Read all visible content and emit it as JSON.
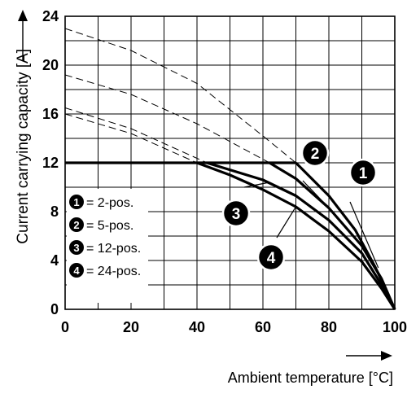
{
  "chart_data": {
    "type": "line",
    "xlabel": "Ambient temperature [°C]",
    "ylabel": "Current carrying capacity [A]",
    "xlim": [
      0,
      100
    ],
    "ylim": [
      0,
      24
    ],
    "x_ticks": [
      0,
      20,
      40,
      60,
      80,
      100
    ],
    "y_ticks": [
      0,
      4,
      8,
      12,
      16,
      20,
      24
    ],
    "grid": true,
    "legend_position": "left-middle",
    "legend": [
      {
        "marker": "1",
        "label": "= 2-pos."
      },
      {
        "marker": "2",
        "label": "= 5-pos."
      },
      {
        "marker": "3",
        "label": "= 12-pos."
      },
      {
        "marker": "4",
        "label": "= 24-pos."
      }
    ],
    "series": [
      {
        "marker": "1",
        "cap_value": 12,
        "solid": [
          [
            70,
            12
          ],
          [
            80,
            9.3
          ],
          [
            88,
            6.5
          ],
          [
            94,
            3.5
          ],
          [
            98,
            1.2
          ],
          [
            100,
            0
          ]
        ],
        "dashed": [
          [
            0,
            23
          ],
          [
            20,
            21.2
          ],
          [
            40,
            18.5
          ],
          [
            60,
            14.2
          ],
          [
            70,
            12
          ]
        ]
      },
      {
        "marker": "2",
        "cap_value": 12,
        "solid": [
          [
            62,
            12
          ],
          [
            70,
            10.7
          ],
          [
            80,
            8.3
          ],
          [
            90,
            5.2
          ],
          [
            96,
            2.5
          ],
          [
            100,
            0
          ]
        ],
        "dashed": [
          [
            0,
            19.2
          ],
          [
            20,
            17.6
          ],
          [
            40,
            15.2
          ],
          [
            62,
            12
          ]
        ]
      },
      {
        "marker": "3",
        "cap_value": 12,
        "solid": [
          [
            43,
            12
          ],
          [
            60,
            10.6
          ],
          [
            70,
            9.3
          ],
          [
            80,
            7.3
          ],
          [
            90,
            4.6
          ],
          [
            96,
            2
          ],
          [
            100,
            0
          ]
        ],
        "dashed": [
          [
            0,
            16.5
          ],
          [
            20,
            14.8
          ],
          [
            43,
            12
          ]
        ]
      },
      {
        "marker": "4",
        "cap_value": 12,
        "solid": [
          [
            40,
            12
          ],
          [
            50,
            11
          ],
          [
            60,
            9.8
          ],
          [
            70,
            8.4
          ],
          [
            80,
            6.4
          ],
          [
            90,
            3.9
          ],
          [
            96,
            1.7
          ],
          [
            100,
            0
          ]
        ],
        "dashed": [
          [
            0,
            16
          ],
          [
            20,
            14.4
          ],
          [
            40,
            12
          ]
        ]
      }
    ],
    "cap_line": {
      "value": 12,
      "from_x": 0,
      "to_x": 70
    }
  }
}
